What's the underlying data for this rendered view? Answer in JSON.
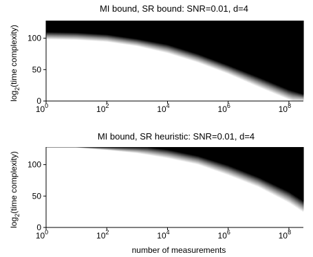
{
  "chart_data": [
    {
      "type": "heatmap",
      "title": "MI bound, SR bound: SNR=0.01, d=4",
      "xlabel": "",
      "ylabel": "log2(time complexity)",
      "ylabel_base": "log",
      "ylabel_sub": "2",
      "ylabel_rest": "(time complexity)",
      "x_scale": "log10",
      "xlim": [
        1,
        300000000
      ],
      "ylim": [
        0,
        128
      ],
      "x_ticks": [
        {
          "value": 1,
          "base": "10",
          "exp": "0"
        },
        {
          "value": 100,
          "base": "10",
          "exp": "2"
        },
        {
          "value": 10000,
          "base": "10",
          "exp": "4"
        },
        {
          "value": 1000000,
          "base": "10",
          "exp": "6"
        },
        {
          "value": 100000000,
          "base": "10",
          "exp": "8"
        }
      ],
      "y_ticks": [
        {
          "value": 0,
          "label": "0"
        },
        {
          "value": 50,
          "label": "50"
        },
        {
          "value": 100,
          "label": "100"
        }
      ],
      "colormap": "gray",
      "regions": {
        "above_boundary": "black",
        "below_boundary": "white"
      },
      "boundary": {
        "x": [
          1,
          10,
          100,
          1000,
          10000,
          100000,
          1000000,
          10000000,
          100000000,
          300000000
        ],
        "y": [
          104,
          103,
          100,
          93,
          83,
          68,
          50,
          30,
          10,
          3
        ]
      },
      "transition_width": [
        6,
        6,
        6,
        6,
        7,
        7,
        7,
        8,
        8,
        8
      ]
    },
    {
      "type": "heatmap",
      "title": "MI bound, SR heuristic: SNR=0.01, d=4",
      "xlabel": "number of measurements",
      "ylabel": "log2(time complexity)",
      "ylabel_base": "log",
      "ylabel_sub": "2",
      "ylabel_rest": "(time complexity)",
      "x_scale": "log10",
      "xlim": [
        1,
        300000000
      ],
      "ylim": [
        0,
        128
      ],
      "x_ticks": [
        {
          "value": 1,
          "base": "10",
          "exp": "0"
        },
        {
          "value": 100,
          "base": "10",
          "exp": "2"
        },
        {
          "value": 10000,
          "base": "10",
          "exp": "4"
        },
        {
          "value": 1000000,
          "base": "10",
          "exp": "6"
        },
        {
          "value": 100000000,
          "base": "10",
          "exp": "8"
        }
      ],
      "y_ticks": [
        {
          "value": 0,
          "label": "0"
        },
        {
          "value": 50,
          "label": "50"
        },
        {
          "value": 100,
          "label": "100"
        }
      ],
      "colormap": "gray",
      "regions": {
        "above_boundary": "black",
        "below_boundary": "white"
      },
      "boundary": {
        "x": [
          1,
          10,
          100,
          1000,
          10000,
          100000,
          1000000,
          10000000,
          100000000,
          300000000
        ],
        "y": [
          128,
          128,
          128,
          124,
          117,
          107,
          91,
          72,
          48,
          33
        ]
      },
      "transition_width": [
        1,
        1,
        5,
        6,
        7,
        7,
        8,
        8,
        9,
        9
      ]
    }
  ]
}
